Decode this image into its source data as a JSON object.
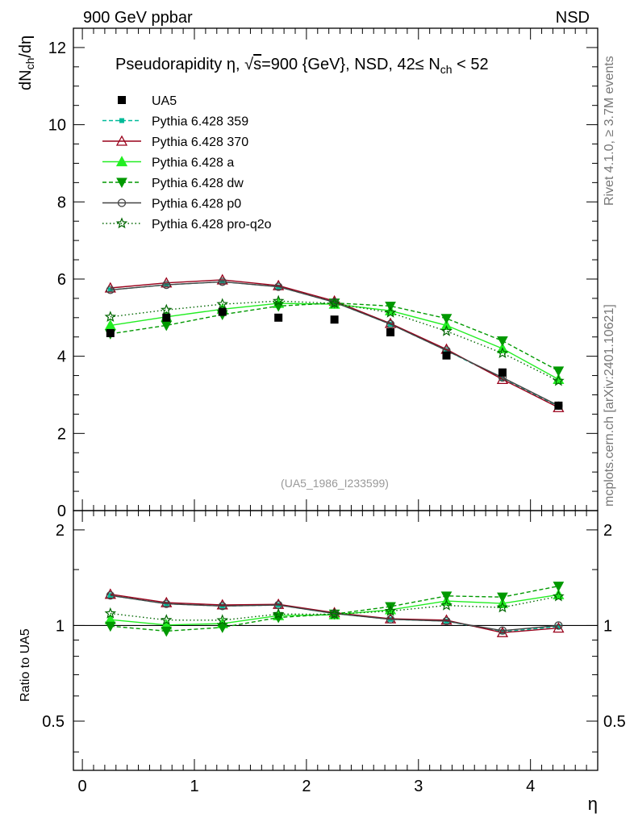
{
  "header": {
    "left": "900 GeV ppbar",
    "right": "NSD"
  },
  "side_labels": {
    "rivet": "Rivet 4.1.0, ≥ 3.7M events",
    "mcplots": "mcplots.cern.ch [arXiv:2401.10621]"
  },
  "chart_data": {
    "type": "line",
    "title": "Pseudorapidity η, √s=900 {GeV}, NSD, 42≤ N_ch < 52",
    "title_parts": {
      "pre": "Pseudorapidity ",
      "eta": "η",
      "comma": ", ",
      "sqrt": "√",
      "s": "s",
      "mid": "=900 {GeV}, NSD, 42",
      "leq": "≤",
      "n": " N",
      "sub": "ch",
      "post": " < 52"
    },
    "ylabel": "dN_ch/dη",
    "ylabel_parts": {
      "a": "dN",
      "sub": "ch",
      "b": "/dη"
    },
    "xlabel": "η",
    "watermark": "(UA5_1986_I233599)",
    "xlim": [
      -0.08,
      4.6
    ],
    "ylim": [
      0,
      12.5
    ],
    "ratio_ylabel": "Ratio to UA5",
    "ratio_ylim": [
      0.35,
      2.3
    ],
    "x_ticks": [
      {
        "v": 0,
        "label": "0"
      },
      {
        "v": 1,
        "label": "1"
      },
      {
        "v": 2,
        "label": "2"
      },
      {
        "v": 3,
        "label": "3"
      },
      {
        "v": 4,
        "label": "4"
      }
    ],
    "y_ticks": [
      {
        "v": 0,
        "label": "0"
      },
      {
        "v": 2,
        "label": "2"
      },
      {
        "v": 4,
        "label": "4"
      },
      {
        "v": 6,
        "label": "6"
      },
      {
        "v": 8,
        "label": "8"
      },
      {
        "v": 10,
        "label": "10"
      },
      {
        "v": 12,
        "label": "12"
      }
    ],
    "ratio_ticks": [
      {
        "v": 0.5,
        "label": "0.5"
      },
      {
        "v": 1,
        "label": "1"
      },
      {
        "v": 2,
        "label": "2"
      }
    ],
    "x": [
      0.25,
      0.75,
      1.25,
      1.75,
      2.25,
      2.75,
      3.25,
      3.75,
      4.25
    ],
    "data": {
      "name": "UA5",
      "color": "#000000",
      "marker": "square",
      "values": [
        4.6,
        5.0,
        5.15,
        5.0,
        4.95,
        4.62,
        4.02,
        3.58,
        2.72
      ]
    },
    "series": [
      {
        "name": "Pythia 6.428 359",
        "color": "#00bb99",
        "dash": "5,3",
        "marker": "smallsquare",
        "values": [
          5.72,
          5.85,
          5.93,
          5.8,
          5.4,
          4.83,
          4.15,
          3.42,
          2.7
        ]
      },
      {
        "name": "Pythia 6.428 370",
        "color": "#99001a",
        "dash": "",
        "marker": "triangle-open",
        "values": [
          5.77,
          5.9,
          5.98,
          5.83,
          5.43,
          4.85,
          4.18,
          3.4,
          2.67
        ]
      },
      {
        "name": "Pythia 6.428 a",
        "color": "#22ee22",
        "dash": "",
        "marker": "triangle",
        "values": [
          4.8,
          5.02,
          5.22,
          5.37,
          5.35,
          5.18,
          4.8,
          4.2,
          3.4
        ]
      },
      {
        "name": "Pythia 6.428 dw",
        "color": "#009900",
        "dash": "5,3",
        "marker": "triangle-down",
        "values": [
          4.58,
          4.8,
          5.08,
          5.3,
          5.38,
          5.3,
          4.98,
          4.4,
          3.62
        ]
      },
      {
        "name": "Pythia 6.428 p0",
        "color": "#444444",
        "dash": "",
        "marker": "circle-open",
        "values": [
          5.72,
          5.85,
          5.93,
          5.8,
          5.4,
          4.83,
          4.15,
          3.45,
          2.72
        ]
      },
      {
        "name": "Pythia 6.428 pro-q2o",
        "color": "#006600",
        "dash": "1.5,3",
        "marker": "star",
        "values": [
          5.02,
          5.2,
          5.35,
          5.43,
          5.37,
          5.13,
          4.65,
          4.08,
          3.36
        ]
      }
    ]
  }
}
